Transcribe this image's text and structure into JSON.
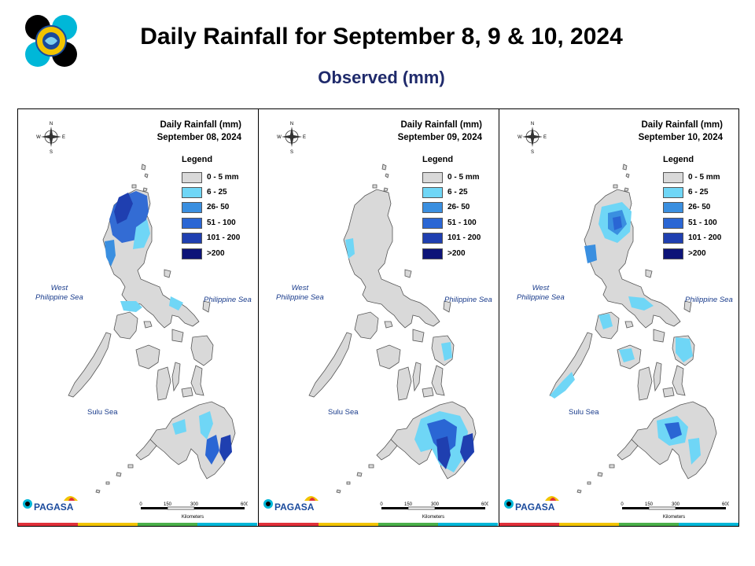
{
  "header": {
    "title": "Daily Rainfall for September 8, 9  & 10, 2024",
    "subtitle": "Observed (mm)"
  },
  "panels": [
    {
      "title_line1": "Daily Rainfall (mm)",
      "title_line2": "September 08, 2024"
    },
    {
      "title_line1": "Daily Rainfall (mm)",
      "title_line2": "September 09, 2024"
    },
    {
      "title_line1": "Daily Rainfall (mm)",
      "title_line2": "September 10, 2024"
    }
  ],
  "legend": {
    "title": "Legend",
    "items": [
      {
        "label": "0 - 5 mm",
        "color": "#d9d9d9"
      },
      {
        "label": "6 - 25",
        "color": "#6fd6f6"
      },
      {
        "label": "26- 50",
        "color": "#3a8fe0"
      },
      {
        "label": "51 - 100",
        "color": "#2a66d4"
      },
      {
        "label": "101 - 200",
        "color": "#1f3fb0"
      },
      {
        "label": ">200",
        "color": "#0d1478"
      }
    ]
  },
  "seas": {
    "west_line1": "West",
    "west_line2": "Philippine Sea",
    "east": "Philippine Sea",
    "sulu": "Sulu Sea"
  },
  "compass": {
    "n": "N",
    "s": "S",
    "e": "E",
    "w": "W"
  },
  "scale": {
    "t0": "0",
    "t1": "150",
    "t2": "300",
    "t3": "600",
    "unit": "Kilometers"
  },
  "branding": {
    "name": "PAGASA"
  }
}
